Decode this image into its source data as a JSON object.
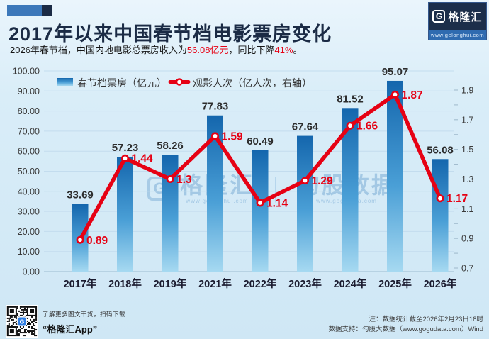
{
  "header": {
    "title": "2017年以来中国春节档电影票房变化",
    "subtitle_parts": [
      {
        "text": "2026年春节档，中国内地电影总票房收入为",
        "highlight": false
      },
      {
        "text": "56.08亿元",
        "highlight": true
      },
      {
        "text": "，同比下降",
        "highlight": false
      },
      {
        "text": "41%",
        "highlight": true
      },
      {
        "text": "。",
        "highlight": false
      }
    ],
    "logo": {
      "monogram": "G",
      "brand": "格隆汇",
      "url": "www.gelonghui.com"
    }
  },
  "chart_data": {
    "type": "bar",
    "title": "2017年以来中国春节档电影票房变化",
    "categories": [
      "2017年",
      "2018年",
      "2019年",
      "2021年",
      "2022年",
      "2023年",
      "2024年",
      "2025年",
      "2026年"
    ],
    "series": [
      {
        "name": "春节档票房（亿元）",
        "type": "bar",
        "axis": "left",
        "values": [
          33.69,
          57.23,
          58.26,
          77.83,
          60.49,
          67.64,
          81.52,
          95.07,
          56.08
        ]
      },
      {
        "name": "观影人次（亿人次，右轴）",
        "type": "line",
        "axis": "right",
        "values": [
          0.89,
          1.44,
          1.3,
          1.59,
          1.14,
          1.29,
          1.66,
          1.87,
          1.17
        ]
      }
    ],
    "left_axis": {
      "min": 0,
      "max": 100,
      "step": 10,
      "decimals": 2
    },
    "right_axis": {
      "min": 0.7,
      "max": 1.9,
      "step": 0.2,
      "minor_step": 0.1,
      "decimals": 1
    },
    "grid": true,
    "legend_position": "top-left"
  },
  "watermark": {
    "monogram": "G",
    "brand": "格隆汇",
    "brand_url": "www.gelonghui.com",
    "divider": "｜",
    "partner": "勾股数据",
    "partner_url": "www.gogudata.com"
  },
  "footer": {
    "qr_caption_top": "了解更多图文干货，扫码下载",
    "qr_caption_bottom": "“格隆汇App”",
    "note_line1": "注：数据统计截至2026年2月23日18时",
    "note_line2": "数据支持：勾股大数据（www.gogudata.com）Wind"
  },
  "colors": {
    "background": "#d9edf8",
    "title": "#1b2b45",
    "accent_red": "#e60114",
    "bar_top": "#1466ad",
    "bar_mid": "#4a9fd6",
    "bar_bottom": "#a6d9f1",
    "grid": "#c3dcee",
    "axis_line": "#a7c4d8",
    "axis_text": "#3a3a3a",
    "xlabel_text": "#1b1b2f",
    "bar_label_text": "#2d2d2d",
    "logo_bg": "#1c2e4a"
  }
}
